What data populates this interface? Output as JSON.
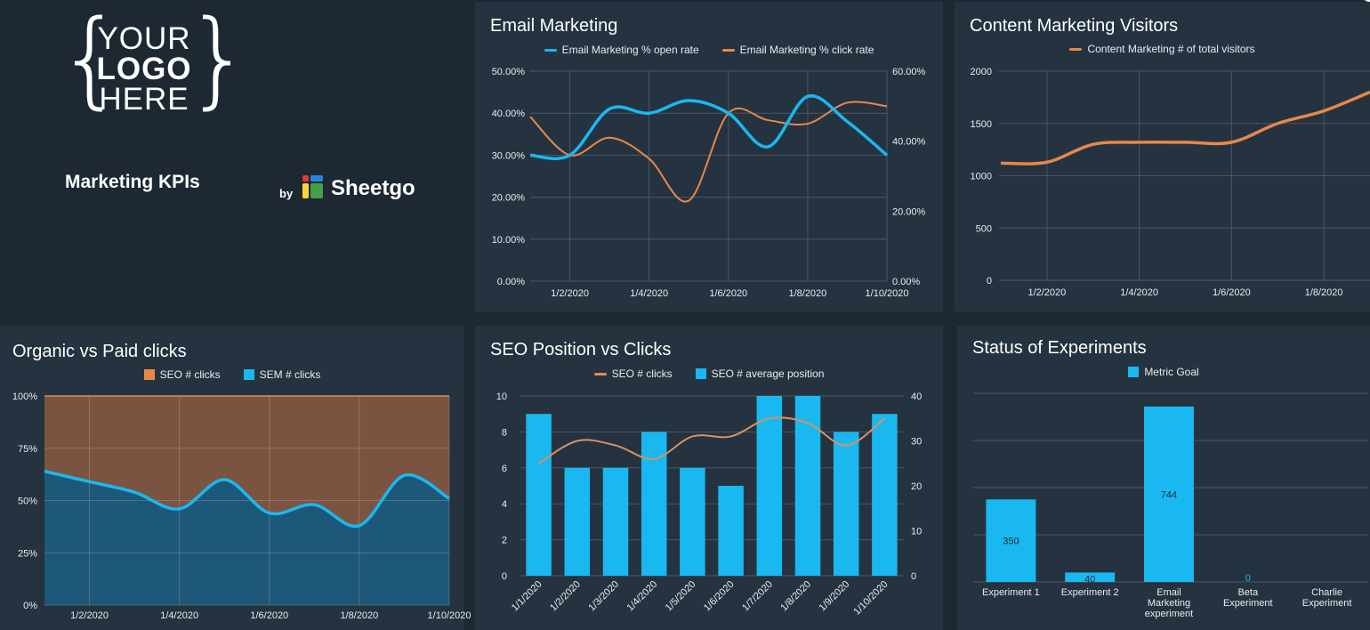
{
  "branding": {
    "logo_line1": "YOUR",
    "logo_line2": "LOGO",
    "logo_line3": "HERE",
    "dashboard_title": "Marketing KPIs",
    "by_label": "by",
    "brand_name": "Sheetgo"
  },
  "colors": {
    "background": "#1e2832",
    "panel": "#253340",
    "cyan": "#1ab8f0",
    "orange": "#e8874a",
    "grid": "#4a5866",
    "text": "#e8ecef"
  },
  "panels": {
    "email": {
      "title": "Email Marketing"
    },
    "content": {
      "title": "Content Marketing Visitors"
    },
    "organic": {
      "title": "Organic vs Paid clicks"
    },
    "seo": {
      "title": "SEO Position vs Clicks"
    },
    "status": {
      "title": "Status of Experiments"
    }
  },
  "chart_data": [
    {
      "id": "email",
      "type": "line",
      "title": "Email Marketing",
      "x": [
        "1/1/2020",
        "1/2/2020",
        "1/3/2020",
        "1/4/2020",
        "1/5/2020",
        "1/6/2020",
        "1/7/2020",
        "1/8/2020",
        "1/9/2020",
        "1/10/2020"
      ],
      "x_tick_labels": [
        "1/2/2020",
        "1/4/2020",
        "1/6/2020",
        "1/8/2020",
        "1/10/2020"
      ],
      "series": [
        {
          "name": "Email Marketing % open rate",
          "axis": "left",
          "values": [
            30,
            30,
            41,
            40,
            43,
            40,
            32,
            44,
            38,
            30
          ]
        },
        {
          "name": "Email Marketing % click rate",
          "axis": "right",
          "values": [
            47,
            36,
            41,
            35,
            23,
            48,
            46,
            45,
            51,
            50
          ]
        }
      ],
      "ylim_left": [
        0,
        50
      ],
      "ylim_right": [
        0,
        60
      ],
      "y_ticks_left": [
        "0.00%",
        "10.00%",
        "20.00%",
        "30.00%",
        "40.00%",
        "50.00%"
      ],
      "y_ticks_right": [
        "0.00%",
        "20.00%",
        "40.00%",
        "60.00%"
      ],
      "grid": true,
      "legend": "top"
    },
    {
      "id": "content",
      "type": "line",
      "title": "Content Marketing Visitors",
      "x": [
        "1/1/2020",
        "1/2/2020",
        "1/3/2020",
        "1/4/2020",
        "1/5/2020",
        "1/6/2020",
        "1/7/2020",
        "1/8/2020",
        "1/9/2020"
      ],
      "x_tick_labels": [
        "1/2/2020",
        "1/4/2020",
        "1/6/2020",
        "1/8/2020"
      ],
      "series": [
        {
          "name": "Content Marketing # of total visitors",
          "values": [
            1120,
            1130,
            1300,
            1320,
            1320,
            1320,
            1500,
            1620,
            1800
          ]
        }
      ],
      "ylim": [
        0,
        2000
      ],
      "y_ticks": [
        "0",
        "500",
        "1000",
        "1500",
        "2000"
      ],
      "grid": true,
      "legend": "top"
    },
    {
      "id": "organic",
      "type": "area",
      "title": "Organic vs Paid clicks",
      "stacked_percent": true,
      "x": [
        "1/1/2020",
        "1/2/2020",
        "1/3/2020",
        "1/4/2020",
        "1/5/2020",
        "1/6/2020",
        "1/7/2020",
        "1/8/2020",
        "1/9/2020",
        "1/10/2020"
      ],
      "x_tick_labels": [
        "1/2/2020",
        "1/4/2020",
        "1/6/2020",
        "1/8/2020"
      ],
      "series": [
        {
          "name": "SEO # clicks",
          "values": [
            36,
            41,
            46,
            54,
            40,
            56,
            52,
            62,
            38,
            49
          ]
        },
        {
          "name": "SEM # clicks",
          "values": [
            64,
            59,
            54,
            46,
            60,
            44,
            48,
            38,
            62,
            51
          ]
        }
      ],
      "y_ticks": [
        "0%",
        "25%",
        "50%",
        "75%",
        "100%"
      ],
      "grid": true,
      "legend": "top"
    },
    {
      "id": "seo",
      "type": "bar",
      "title": "SEO Position vs Clicks",
      "categories": [
        "1/1/2020",
        "1/2/2020",
        "1/3/2020",
        "1/4/2020",
        "1/5/2020",
        "1/6/2020",
        "1/7/2020",
        "1/8/2020",
        "1/9/2020",
        "1/10/2020"
      ],
      "series": [
        {
          "name": "SEO # clicks",
          "type": "line",
          "axis": "right",
          "values": [
            25,
            30,
            29,
            26,
            31,
            31,
            35,
            34,
            29,
            35
          ]
        },
        {
          "name": "SEO # average position",
          "type": "bar",
          "axis": "left",
          "values": [
            9,
            6,
            6,
            8,
            6,
            5,
            10,
            10,
            8,
            9
          ]
        }
      ],
      "ylim_left": [
        0,
        10
      ],
      "ylim_right": [
        0,
        40
      ],
      "y_ticks_left": [
        "0",
        "2",
        "4",
        "6",
        "8",
        "10"
      ],
      "y_ticks_right": [
        "0",
        "10",
        "20",
        "30",
        "40"
      ],
      "grid": true,
      "legend": "top"
    },
    {
      "id": "status",
      "type": "bar",
      "title": "Status of Experiments",
      "categories": [
        "Experiment 1",
        "Experiment 2",
        "Email Marketing experiment",
        "Beta Experiment",
        "Charlie Experiment"
      ],
      "category_lines": [
        [
          "Experiment 1"
        ],
        [
          "Experiment 2"
        ],
        [
          "Email",
          "Marketing",
          "experiment"
        ],
        [
          "Beta",
          "Experiment"
        ],
        [
          "Charlie",
          "Experiment"
        ]
      ],
      "series": [
        {
          "name": "Metric Goal",
          "values": [
            350,
            40,
            744,
            0,
            null
          ]
        }
      ],
      "data_labels": [
        "350",
        "40",
        "744",
        "0",
        ""
      ],
      "ylim": [
        0,
        800
      ],
      "grid": true,
      "legend": "top"
    }
  ]
}
